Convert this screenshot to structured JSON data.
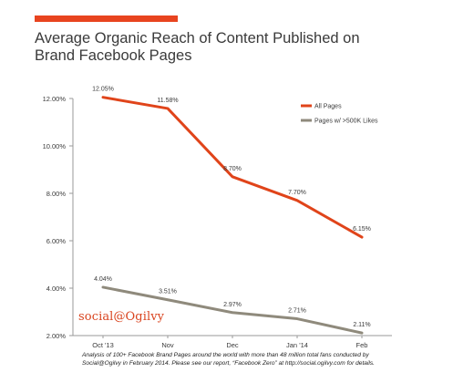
{
  "header": {
    "title_line1": "Average Organic Reach of Content Published on",
    "title_line2": "Brand Facebook Pages"
  },
  "colors": {
    "accent": "#e8441f",
    "all_pages": "#e0441a",
    "large_pages": "#8f8a7c",
    "axis": "#9a9a9a",
    "text": "#3a3a3a"
  },
  "brand": {
    "logo_text": "social@Ogilvy"
  },
  "footnote": {
    "line1": "Analysis of 100+ Facebook Brand Pages around the world with more than 48 million total fans conducted by",
    "line2": "Social@Ogilvy in February 2014. Please see our report, “Facebook Zero” at http://social.ogilvy.com for details."
  },
  "chart_data": {
    "type": "line",
    "title": "Average Organic Reach of Content Published on Brand Facebook Pages",
    "xlabel": "",
    "ylabel": "",
    "categories": [
      "Oct '13",
      "Nov",
      "Dec",
      "Jan '14",
      "Feb"
    ],
    "ylim": [
      2,
      12
    ],
    "yticks": [
      2,
      4,
      6,
      8,
      10,
      12
    ],
    "ytick_labels": [
      "2.00%",
      "4.00%",
      "6.00%",
      "8.00%",
      "10.00%",
      "12.00%"
    ],
    "grid": false,
    "legend_position": "top-right",
    "series": [
      {
        "name": "All Pages",
        "values": [
          12.05,
          11.58,
          8.7,
          7.7,
          6.15
        ],
        "labels": [
          "12.05%",
          "11.58%",
          "8.70%",
          "7.70%",
          "6.15%"
        ],
        "color": "#e0441a"
      },
      {
        "name": "Pages w/ >500K Likes",
        "values": [
          4.04,
          3.51,
          2.97,
          2.71,
          2.11
        ],
        "labels": [
          "4.04%",
          "3.51%",
          "2.97%",
          "2.71%",
          "2.11%"
        ],
        "color": "#8f8a7c"
      }
    ]
  }
}
